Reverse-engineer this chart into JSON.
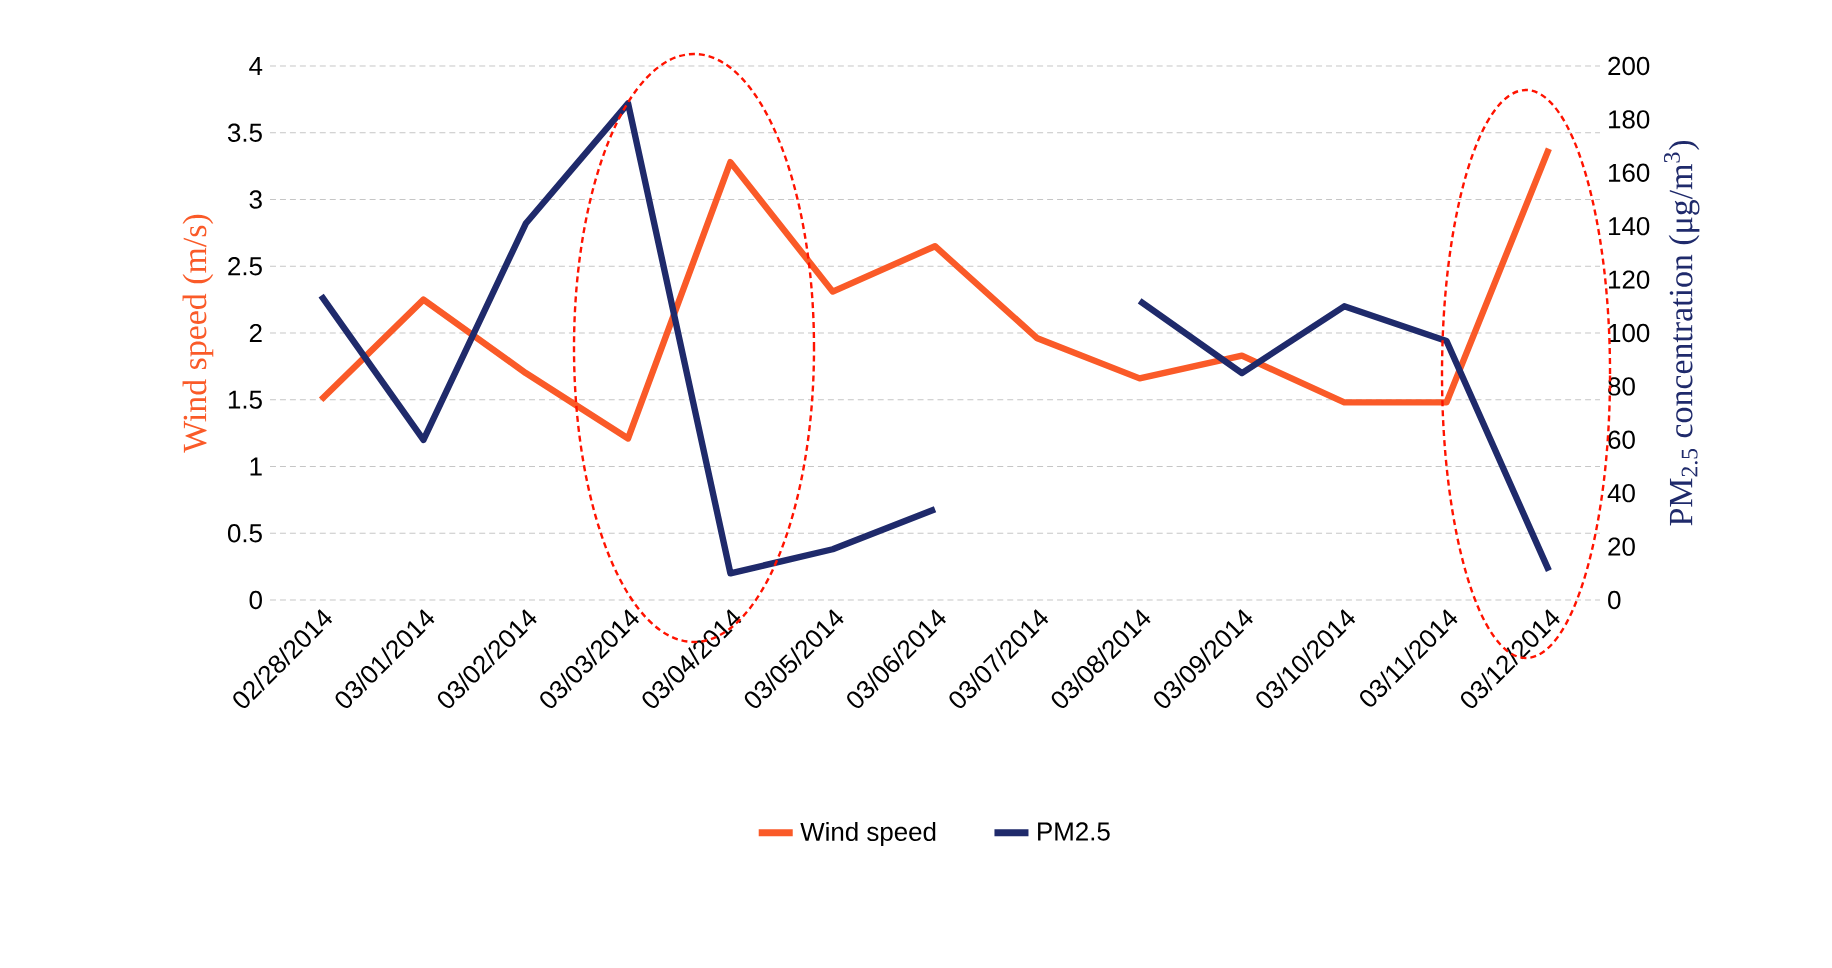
{
  "chart_data": {
    "type": "line",
    "categories": [
      "02/28/2014",
      "03/01/2014",
      "03/02/2014",
      "03/03/2014",
      "03/04/2014",
      "03/05/2014",
      "03/06/2014",
      "03/07/2014",
      "03/08/2014",
      "03/09/2014",
      "03/10/2014",
      "03/11/2014",
      "03/12/2014"
    ],
    "series": [
      {
        "name": "Wind speed",
        "color": "#fa5a28",
        "values": [
          1.5,
          2.25,
          1.7,
          1.21,
          3.28,
          2.31,
          2.65,
          1.96,
          1.66,
          1.83,
          1.48,
          1.48,
          3.38
        ]
      },
      {
        "name": "PM2.5",
        "color": "#1f2a6b",
        "axis": "y2",
        "values": [
          114,
          60,
          141,
          186,
          10,
          19,
          34,
          null,
          112,
          85,
          110,
          97,
          11
        ]
      }
    ],
    "ylabel": "Wind speed (m/s)",
    "y2label": "PM$_{2.5}$ concentration (μg/m$^{3}$)",
    "ylim": [
      0,
      4
    ],
    "yticks": [
      0,
      0.5,
      1,
      1.5,
      2,
      2.5,
      3,
      3.5,
      4
    ],
    "y2lim": [
      0,
      200
    ],
    "y2ticks": [
      0,
      20,
      40,
      60,
      80,
      100,
      120,
      140,
      160,
      180,
      200
    ],
    "grid": "y",
    "legend": "bottom"
  }
}
